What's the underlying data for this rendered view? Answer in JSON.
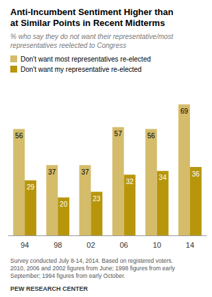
{
  "chart_data": {
    "type": "bar",
    "title": "Anti-Incumbent Sentiment Higher than\nat Similar Points in Recent Midterms",
    "subtitle": "% who say they do not want their representative/most\nrepresentatives reelected to Congress",
    "categories": [
      "94",
      "98",
      "02",
      "06",
      "10",
      "14"
    ],
    "series": [
      {
        "name": "Don't want most representatives re-elected",
        "color": "#D4BC6A",
        "values": [
          56,
          37,
          37,
          57,
          56,
          69
        ]
      },
      {
        "name": "Don't want my representative re-elected",
        "color": "#B8960C",
        "values": [
          29,
          20,
          23,
          32,
          34,
          36
        ]
      }
    ],
    "ylim": [
      0,
      80
    ],
    "grid": false,
    "legend": "upper left",
    "data_labels": true,
    "tick_labels": "x",
    "annotations": [
      "Survey conducted July 8-14, 2014. Based on registered voters.\n2010, 2006 and 2002 figures from June; 1998 figures from early\nSeptember; 1994 figures from early October.",
      "PEW RESEARCH CENTER"
    ]
  }
}
